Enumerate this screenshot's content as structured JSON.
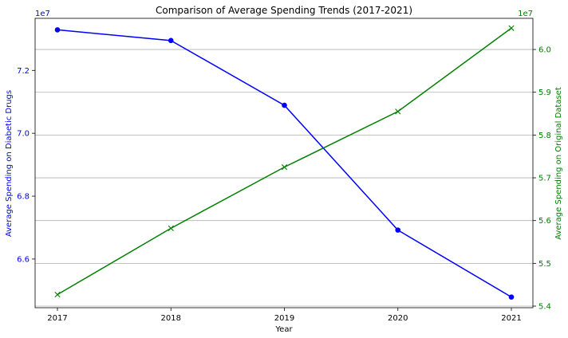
{
  "chart_data": {
    "type": "line",
    "title": "Comparison of Average Spending Trends (2017-2021)",
    "xlabel": "Year",
    "x": [
      "2017",
      "2018",
      "2019",
      "2020",
      "2021"
    ],
    "left_axis": {
      "label": "Average Spending on Diabetic Drugs",
      "color": "#0000ff",
      "ylim": [
        64451000.0,
        73656000.0
      ],
      "ticks": [
        66000000.0,
        68000000.0,
        70000000.0,
        72000000.0
      ],
      "tick_labels": [
        "6.6",
        "6.8",
        "7.0",
        "7.2"
      ],
      "offset_text": "1e7"
    },
    "right_axis": {
      "label": "Average Spending on Original Dataset",
      "color": "#008000",
      "ylim": [
        53963000.0,
        60728000.0
      ],
      "ticks": [
        54000000.0,
        55000000.0,
        56000000.0,
        57000000.0,
        58000000.0,
        59000000.0,
        60000000.0
      ],
      "tick_labels": [
        "5.4",
        "5.5",
        "5.6",
        "5.7",
        "5.8",
        "5.9",
        "6.0"
      ],
      "offset_text": "1e7"
    },
    "series": [
      {
        "axis": "left",
        "color": "#0000ff",
        "marker": "circle",
        "values": [
          73290000,
          72950000,
          70890000,
          66920000,
          64790000
        ]
      },
      {
        "axis": "right",
        "color": "#008000",
        "marker": "x",
        "values": [
          54270000,
          55820000,
          57250000,
          58550000,
          60500000
        ]
      }
    ],
    "grid": "horizontal lines at right-axis ticks",
    "legend": "none"
  }
}
